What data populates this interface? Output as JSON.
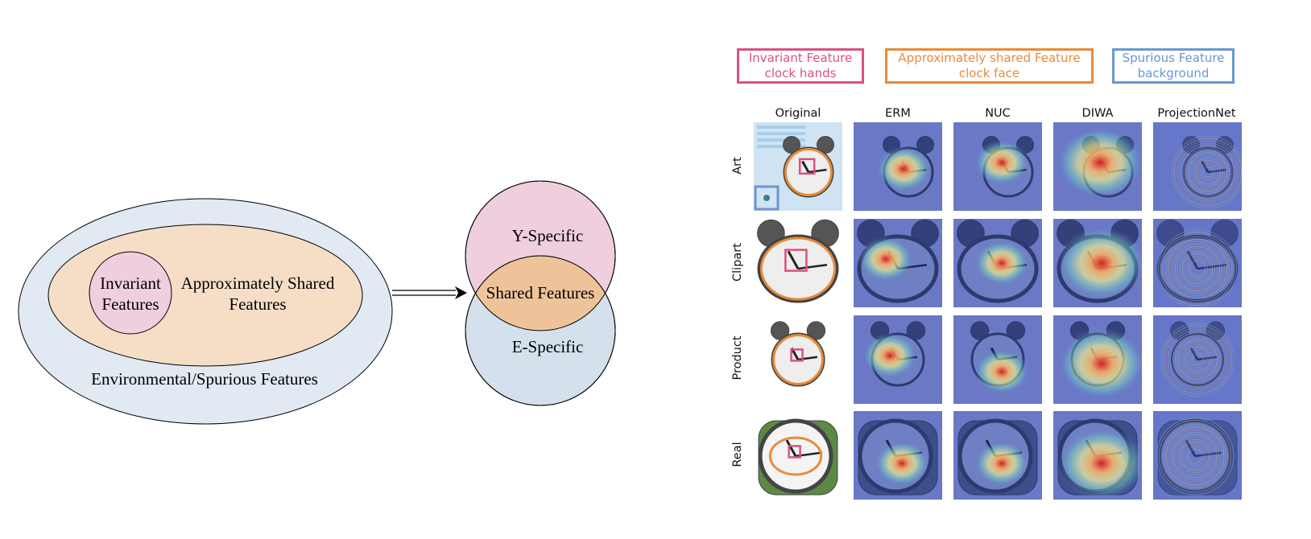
{
  "diagram": {
    "ellipse_labels": {
      "invariant": [
        "Invariant",
        "Features"
      ],
      "approx": [
        "Approximately Shared",
        "Features"
      ],
      "env": "Environmental/Spurious Features"
    },
    "venn_labels": {
      "y_specific": "Y-Specific",
      "shared": "Shared Features",
      "e_specific": "E-Specific"
    },
    "colors": {
      "outer_fill": "#e1e9f2",
      "middle_fill": "#f6dec6",
      "inner_fill": "#efcfdd",
      "venn_top": "#efcfdd",
      "venn_overlap": "#efc39a",
      "venn_bottom": "#d4e0ec"
    }
  },
  "legend": [
    {
      "line1": "Invariant Feature",
      "line2": "clock hands",
      "color": "#d9527d"
    },
    {
      "line1": "Approximately shared Feature",
      "line2": "clock face",
      "color": "#e88b3a"
    },
    {
      "line1": "Spurious Feature",
      "line2": "background",
      "color": "#6b97cf"
    }
  ],
  "grid": {
    "columns": [
      "Original",
      "ERM",
      "NUC",
      "DIWA",
      "ProjectionNet"
    ],
    "rows": [
      "Art",
      "Clipart",
      "Product",
      "Real"
    ]
  }
}
